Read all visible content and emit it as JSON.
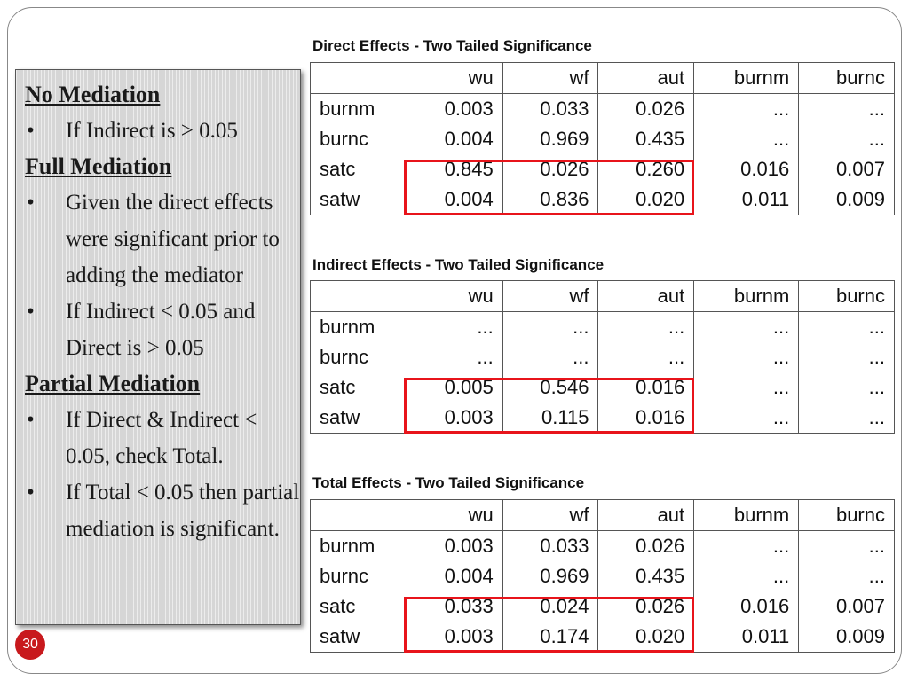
{
  "left_panel": {
    "no_mediation": {
      "heading": "No Mediation",
      "bullets": [
        "If Indirect is > 0.05"
      ]
    },
    "full_mediation": {
      "heading": "Full Mediation",
      "bullets": [
        "Given the direct effects were significant prior to adding the mediator",
        "If Indirect < 0.05 and Direct is > 0.05"
      ]
    },
    "partial_mediation": {
      "heading": "Partial Mediation",
      "bullets": [
        "If Direct & Indirect < 0.05, check Total.",
        "If Total < 0.05 then partial mediation is significant."
      ]
    }
  },
  "slide_number": "30",
  "tables": [
    {
      "title": "Direct Effects - Two Tailed Significance",
      "columns": [
        "",
        "wu",
        "wf",
        "aut",
        "burnm",
        "burnc"
      ],
      "rows": [
        [
          "burnm",
          "0.003",
          "0.033",
          "0.026",
          "...",
          "..."
        ],
        [
          "burnc",
          "0.004",
          "0.969",
          "0.435",
          "...",
          "..."
        ],
        [
          "satc",
          "0.845",
          "0.026",
          "0.260",
          "0.016",
          "0.007"
        ],
        [
          "satw",
          "0.004",
          "0.836",
          "0.020",
          "0.011",
          "0.009"
        ]
      ]
    },
    {
      "title": "Indirect Effects - Two Tailed Significance",
      "columns": [
        "",
        "wu",
        "wf",
        "aut",
        "burnm",
        "burnc"
      ],
      "rows": [
        [
          "burnm",
          "...",
          "...",
          "...",
          "...",
          "..."
        ],
        [
          "burnc",
          "...",
          "...",
          "...",
          "...",
          "..."
        ],
        [
          "satc",
          "0.005",
          "0.546",
          "0.016",
          "...",
          "..."
        ],
        [
          "satw",
          "0.003",
          "0.115",
          "0.016",
          "...",
          "..."
        ]
      ]
    },
    {
      "title": "Total Effects - Two Tailed Significance",
      "columns": [
        "",
        "wu",
        "wf",
        "aut",
        "burnm",
        "burnc"
      ],
      "rows": [
        [
          "burnm",
          "0.003",
          "0.033",
          "0.026",
          "...",
          "..."
        ],
        [
          "burnc",
          "0.004",
          "0.969",
          "0.435",
          "...",
          "..."
        ],
        [
          "satc",
          "0.033",
          "0.024",
          "0.026",
          "0.016",
          "0.007"
        ],
        [
          "satw",
          "0.003",
          "0.174",
          "0.020",
          "0.011",
          "0.009"
        ]
      ]
    }
  ],
  "colors": {
    "highlight": "#e8141b",
    "slide_number_bg": "#c8191d",
    "panel_bg": "#d6d6d6"
  }
}
